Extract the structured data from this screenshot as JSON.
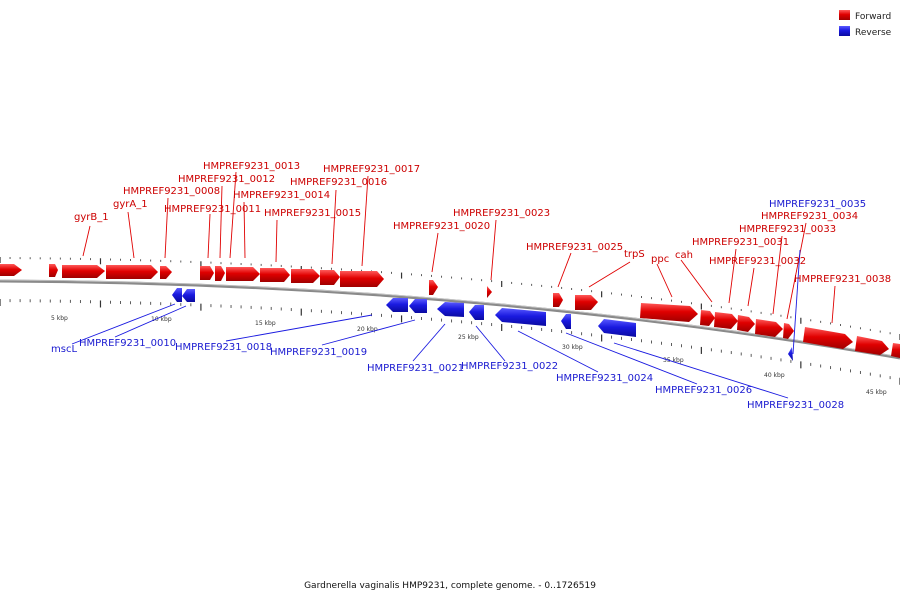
{
  "title": "Gardnerella vaginalis HMP9231, complete genome. - 0..1726519",
  "colors": {
    "forward": "#e00000",
    "reverse": "#1a1ae0",
    "backbone": "#6e6e6e"
  },
  "legend": [
    {
      "label": "Forward",
      "strand": "forward"
    },
    {
      "label": "Reverse",
      "strand": "reverse"
    }
  ],
  "scale": [
    "5 kbp",
    "10 kbp",
    "15 kbp",
    "20 kbp",
    "25 kbp",
    "30 kbp",
    "35 kbp",
    "40 kbp",
    "45 kbp"
  ],
  "forward_labels": [
    "gyrB_1",
    "gyrA_1",
    "HMPREF9231_0008",
    "HMPREF9231_0011",
    "HMPREF9231_0012",
    "HMPREF9231_0013",
    "HMPREF9231_0014",
    "HMPREF9231_0015",
    "HMPREF9231_0016",
    "HMPREF9231_0017",
    "HMPREF9231_0020",
    "HMPREF9231_0023",
    "HMPREF9231_0025",
    "trpS",
    "ppc",
    "cah",
    "HMPREF9231_0031",
    "HMPREF9231_0032",
    "HMPREF9231_0033",
    "HMPREF9231_0034",
    "HMPREF9231_0038"
  ],
  "reverse_labels": [
    "HMPREF9231_0035",
    "mscL",
    "HMPREF9231_0010",
    "HMPREF9231_0018",
    "HMPREF9231_0019",
    "HMPREF9231_0021",
    "HMPREF9231_0022",
    "HMPREF9231_0024",
    "HMPREF9231_0026",
    "HMPREF9231_0028"
  ]
}
